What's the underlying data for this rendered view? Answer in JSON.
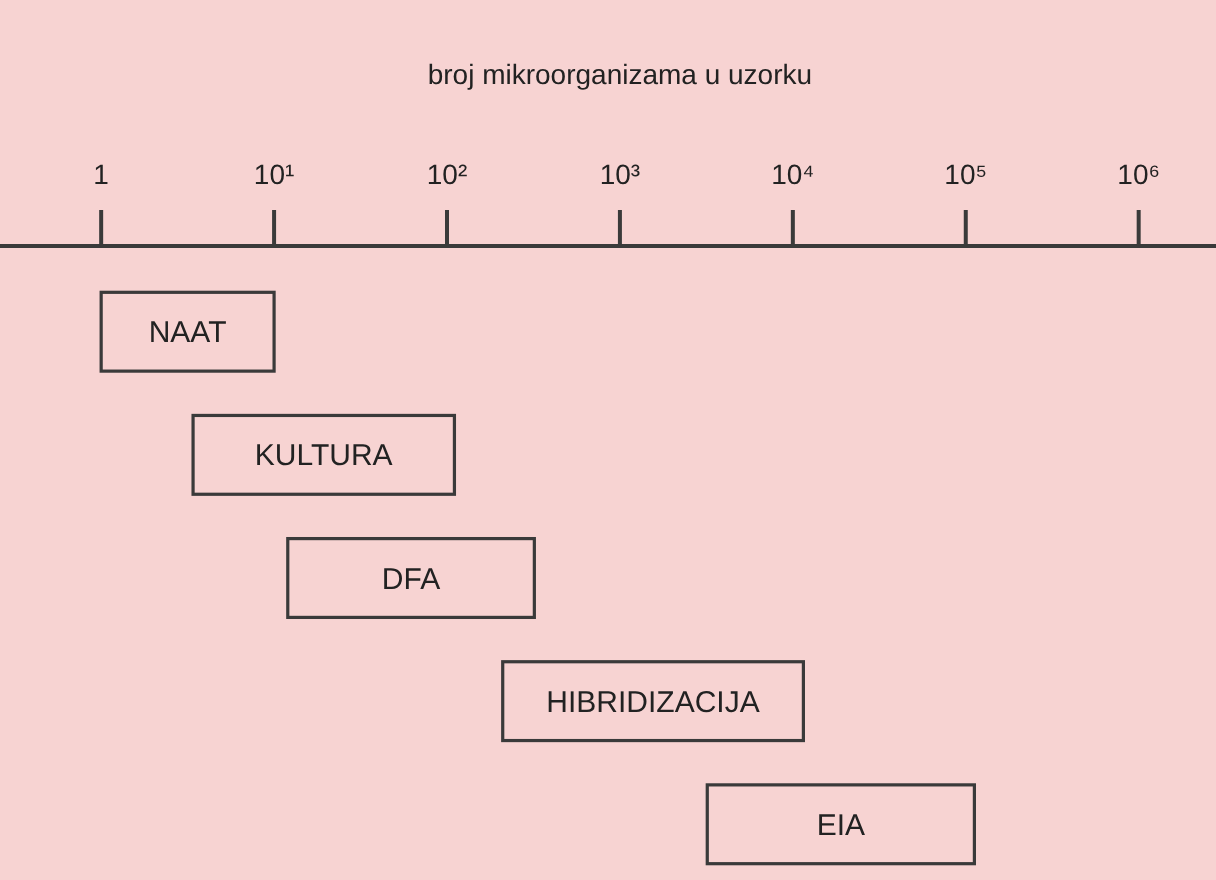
{
  "chart_data": {
    "type": "bar",
    "orientation": "horizontal",
    "log": "x",
    "xlabel": "broj mikroorganizama u uzorku",
    "categories": [
      "NAAT",
      "KULTURA",
      "DFA",
      "HIBRIDIZACIJA",
      "EIA"
    ],
    "base": [
      1,
      3.4,
      12,
      210,
      3200
    ],
    "values": [
      9,
      107,
      308,
      11300,
      109000
    ],
    "color": "#f7d3d2",
    "xlim": [
      0.26,
      2800000
    ],
    "xticks": [
      1,
      {
        "value": 10,
        "label": "10¹"
      },
      {
        "value": 100,
        "label": "10²"
      },
      {
        "value": 1000,
        "label": "10³"
      },
      {
        "value": 10000,
        "label": "10⁴"
      },
      {
        "value": 100000,
        "label": "10⁵"
      },
      {
        "value": 1000000,
        "label": "10⁶"
      }
    ]
  }
}
